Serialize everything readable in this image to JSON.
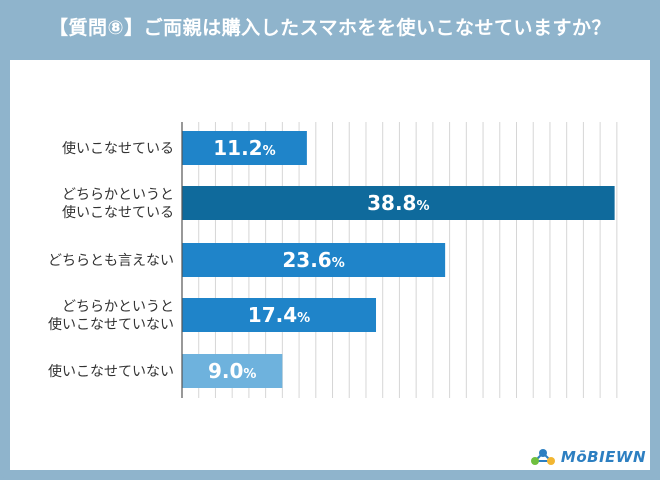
{
  "title": "【質問⑧】ご両親は購入したスマホをを使いこなせていますか？",
  "logo": {
    "text": "MōBIEWN"
  },
  "colors": {
    "frame": "#8fb4cc",
    "bar_default": "#1f84c9",
    "bar_highlight": "#0f6a9c",
    "bar_light": "#6eb2dd",
    "grid": "#d6d6d6"
  },
  "chart_data": {
    "type": "bar",
    "orientation": "horizontal",
    "categories": [
      [
        "使いこなせている"
      ],
      [
        "どちらかというと",
        "使いこなせている"
      ],
      [
        "どちらとも言えない"
      ],
      [
        "どちらかというと",
        "使いこなせていない"
      ],
      [
        "使いこなせていない"
      ]
    ],
    "values": [
      11.2,
      38.8,
      23.6,
      17.4,
      9.0
    ],
    "value_labels": [
      "11.2",
      "38.8",
      "23.6",
      "17.4",
      "9.0"
    ],
    "unit": "%",
    "bar_colors": [
      "#1f84c9",
      "#0f6a9c",
      "#1f84c9",
      "#1f84c9",
      "#6eb2dd"
    ],
    "xlim": [
      0,
      40
    ],
    "grid": true,
    "title": "",
    "xlabel": "",
    "ylabel": ""
  }
}
